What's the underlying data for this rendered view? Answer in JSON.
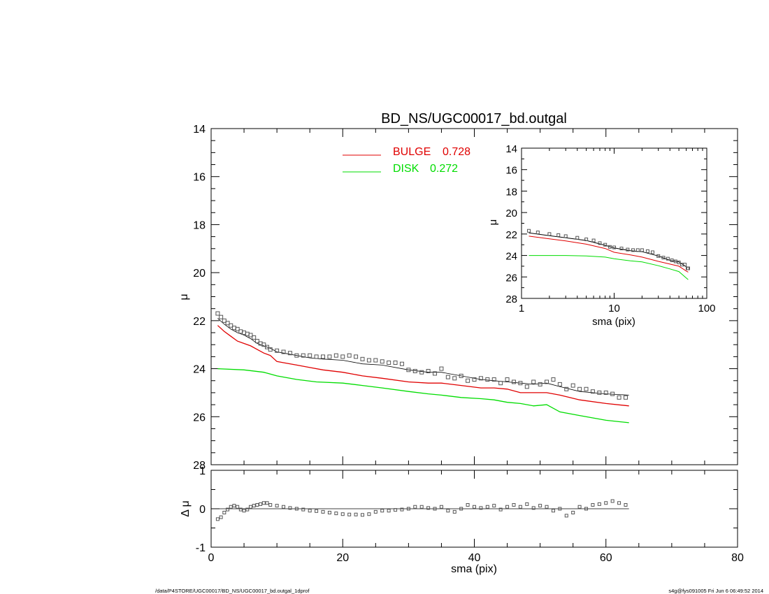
{
  "chart_data": [
    {
      "type": "line",
      "title": "BD_NS/UGC00017_bd.outgal",
      "xlabel": "sma (pix)",
      "ylabel": "μ",
      "xlim": [
        0,
        80
      ],
      "ylim": [
        28,
        14
      ],
      "y_inverted": true,
      "xticks": [
        "0",
        "20",
        "40",
        "60",
        "80"
      ],
      "yticks": [
        "14",
        "16",
        "18",
        "20",
        "22",
        "24",
        "26",
        "28"
      ],
      "legend_position": "top-center",
      "series": [
        {
          "name": "BULGE",
          "legend_value": "0.728",
          "color": "#e00000",
          "x": [
            1,
            2,
            3,
            4,
            5,
            6,
            7,
            8,
            9,
            10,
            11,
            13,
            15,
            17,
            20,
            23,
            26,
            30,
            33,
            35,
            38,
            41,
            43,
            45,
            47,
            49,
            51,
            53,
            56,
            60,
            63.5
          ],
          "y": [
            22.2,
            22.45,
            22.65,
            22.85,
            22.95,
            23.05,
            23.2,
            23.35,
            23.45,
            23.7,
            23.75,
            23.85,
            23.95,
            24.05,
            24.15,
            24.3,
            24.4,
            24.55,
            24.6,
            24.6,
            24.7,
            24.8,
            24.8,
            24.85,
            25.0,
            25.0,
            25.0,
            25.1,
            25.3,
            25.45,
            25.55
          ]
        },
        {
          "name": "DISK",
          "legend_value": "0.272",
          "color": "#00dd00",
          "x": [
            1,
            5,
            8,
            10,
            13,
            16,
            20,
            23,
            26,
            30,
            33,
            35,
            38,
            41,
            43,
            45,
            47,
            49,
            51,
            53,
            56,
            58,
            60,
            63.5
          ],
          "y": [
            24.0,
            24.05,
            24.15,
            24.3,
            24.45,
            24.55,
            24.6,
            24.7,
            24.8,
            24.95,
            25.05,
            25.1,
            25.2,
            25.25,
            25.3,
            25.4,
            25.45,
            25.55,
            25.5,
            25.8,
            25.95,
            26.05,
            26.15,
            26.25
          ]
        },
        {
          "name": "",
          "color": "#000000",
          "x": [
            1,
            2,
            3,
            4,
            5,
            6,
            7,
            8,
            9,
            10,
            11,
            13,
            15,
            17,
            20,
            23,
            26,
            30,
            33,
            35,
            38,
            41,
            43,
            45,
            47,
            49,
            51,
            53,
            56,
            60,
            63.5
          ],
          "y": [
            21.9,
            22.15,
            22.35,
            22.5,
            22.6,
            22.75,
            22.95,
            23.05,
            23.15,
            23.3,
            23.35,
            23.45,
            23.55,
            23.6,
            23.65,
            23.8,
            23.85,
            24.05,
            24.15,
            24.15,
            24.3,
            24.45,
            24.5,
            24.55,
            24.6,
            24.65,
            24.6,
            24.75,
            24.95,
            25.05,
            25.1
          ]
        },
        {
          "name": "",
          "marker": "square",
          "color": "#555555",
          "x": [
            1,
            1.5,
            2,
            2.5,
            3,
            3.5,
            4,
            4.5,
            5,
            5.5,
            6,
            6.5,
            7,
            7.5,
            8,
            8.5,
            9,
            10,
            11,
            12,
            13,
            14,
            15,
            16,
            17,
            18,
            19,
            20,
            21,
            22,
            23,
            24,
            25,
            26,
            27,
            28,
            29,
            30,
            31,
            32,
            33,
            34,
            35,
            36,
            37,
            38,
            39,
            40,
            41,
            42,
            43,
            44,
            45,
            46,
            47,
            48,
            49,
            50,
            51,
            52,
            53,
            54,
            55,
            56,
            57,
            58,
            59,
            60,
            61,
            62,
            63
          ],
          "y": [
            21.7,
            21.85,
            22.0,
            22.1,
            22.2,
            22.3,
            22.35,
            22.45,
            22.5,
            22.55,
            22.6,
            22.7,
            22.85,
            22.95,
            23.0,
            23.1,
            23.2,
            23.25,
            23.3,
            23.35,
            23.45,
            23.45,
            23.45,
            23.5,
            23.5,
            23.5,
            23.45,
            23.5,
            23.45,
            23.5,
            23.6,
            23.65,
            23.65,
            23.7,
            23.75,
            23.75,
            23.8,
            24.05,
            24.1,
            24.15,
            24.1,
            24.2,
            24.0,
            24.35,
            24.4,
            24.3,
            24.5,
            24.45,
            24.4,
            24.45,
            24.45,
            24.6,
            24.45,
            24.55,
            24.6,
            24.75,
            24.55,
            24.65,
            24.55,
            24.45,
            24.65,
            24.85,
            24.7,
            24.85,
            24.85,
            24.95,
            25.0,
            25.0,
            25.05,
            25.2,
            25.2
          ]
        }
      ]
    },
    {
      "type": "scatter",
      "xlabel": "sma (pix)",
      "ylabel": "Δ μ",
      "xlim": [
        0,
        80
      ],
      "ylim": [
        -1,
        1
      ],
      "xticks": [
        "0",
        "20",
        "40",
        "60",
        "80"
      ],
      "yticks": [
        "-1",
        "0",
        "1"
      ],
      "reference_line_y": 0,
      "x": [
        1,
        1.5,
        2,
        2.5,
        3,
        3.5,
        4,
        4.5,
        5,
        5.5,
        6,
        6.5,
        7,
        7.5,
        8,
        8.5,
        9,
        10,
        11,
        12,
        13,
        14,
        15,
        16,
        17,
        18,
        19,
        20,
        21,
        22,
        23,
        24,
        25,
        26,
        27,
        28,
        29,
        30,
        31,
        32,
        33,
        34,
        35,
        36,
        37,
        38,
        39,
        40,
        41,
        42,
        43,
        44,
        45,
        46,
        47,
        48,
        49,
        50,
        51,
        52,
        53,
        54,
        55,
        56,
        57,
        58,
        59,
        60,
        61,
        62,
        63
      ],
      "y": [
        -0.27,
        -0.22,
        -0.1,
        -0.02,
        0.05,
        0.08,
        0.05,
        -0.02,
        -0.05,
        -0.02,
        0.05,
        0.08,
        0.1,
        0.12,
        0.15,
        0.15,
        0.1,
        0.08,
        0.05,
        0.02,
        0.0,
        -0.02,
        -0.05,
        -0.06,
        -0.08,
        -0.1,
        -0.12,
        -0.14,
        -0.15,
        -0.15,
        -0.16,
        -0.14,
        -0.08,
        -0.05,
        -0.05,
        -0.03,
        -0.02,
        0.0,
        0.05,
        0.05,
        0.02,
        0.0,
        0.05,
        -0.05,
        -0.08,
        0.0,
        0.1,
        0.05,
        0.02,
        0.05,
        0.08,
        -0.02,
        0.05,
        0.1,
        0.05,
        0.12,
        0.02,
        0.08,
        0.05,
        -0.05,
        0.0,
        -0.18,
        -0.1,
        0.05,
        0.0,
        0.1,
        0.12,
        0.15,
        0.2,
        0.15,
        0.1
      ]
    },
    {
      "type": "line",
      "inset": true,
      "xlabel": "sma (pix)",
      "ylabel": "μ",
      "x_scale": "log",
      "xlim": [
        1,
        100
      ],
      "ylim": [
        28,
        14
      ],
      "y_inverted": true,
      "xticks": [
        "1",
        "10",
        "100"
      ],
      "yticks": [
        "14",
        "16",
        "18",
        "20",
        "22",
        "24",
        "26",
        "28"
      ],
      "series": [
        {
          "name": "BULGE",
          "color": "#e00000",
          "x": [
            1.2,
            2,
            3,
            5,
            8,
            10,
            15,
            20,
            30,
            40,
            50,
            60,
            63
          ],
          "y": [
            22.2,
            22.45,
            22.65,
            22.95,
            23.35,
            23.7,
            23.95,
            24.15,
            24.55,
            24.8,
            25.0,
            25.45,
            25.55
          ]
        },
        {
          "name": "DISK",
          "color": "#00dd00",
          "x": [
            1.2,
            3,
            5,
            8,
            10,
            15,
            20,
            30,
            40,
            50,
            60,
            63
          ],
          "y": [
            24.0,
            24.0,
            24.05,
            24.15,
            24.3,
            24.5,
            24.6,
            24.95,
            25.25,
            25.5,
            26.1,
            26.25
          ]
        },
        {
          "name": "",
          "color": "#000000",
          "x": [
            1.2,
            2,
            3,
            5,
            8,
            10,
            15,
            20,
            30,
            40,
            50,
            60,
            63
          ],
          "y": [
            21.9,
            22.15,
            22.35,
            22.6,
            23.05,
            23.3,
            23.55,
            23.65,
            24.05,
            24.45,
            24.6,
            25.05,
            25.1
          ]
        },
        {
          "name": "",
          "marker": "square",
          "color": "#555555",
          "x": [
            1.2,
            1.5,
            2,
            2.5,
            3,
            4,
            5,
            6,
            7,
            8,
            9,
            10,
            12,
            14,
            16,
            18,
            20,
            23,
            26,
            30,
            34,
            38,
            42,
            46,
            50,
            54,
            58,
            62,
            63
          ],
          "y": [
            21.7,
            21.85,
            22.0,
            22.1,
            22.2,
            22.35,
            22.5,
            22.6,
            22.85,
            23.0,
            23.2,
            23.25,
            23.35,
            23.45,
            23.5,
            23.5,
            23.5,
            23.6,
            23.7,
            24.05,
            24.2,
            24.3,
            24.45,
            24.55,
            24.65,
            24.85,
            24.85,
            25.2,
            25.2
          ]
        }
      ]
    }
  ],
  "legend": [
    {
      "label": "BULGE",
      "value": "0.728",
      "color": "#e00000"
    },
    {
      "label": "DISK",
      "value": "0.272",
      "color": "#00dd00"
    }
  ],
  "footer": {
    "left": "/data/P4STORE/UGC00017/BD_NS/UGC00017_bd.outgal_1dprof",
    "right": "s4g@fys091005  Fri Jun  6 06:49:52 2014"
  }
}
